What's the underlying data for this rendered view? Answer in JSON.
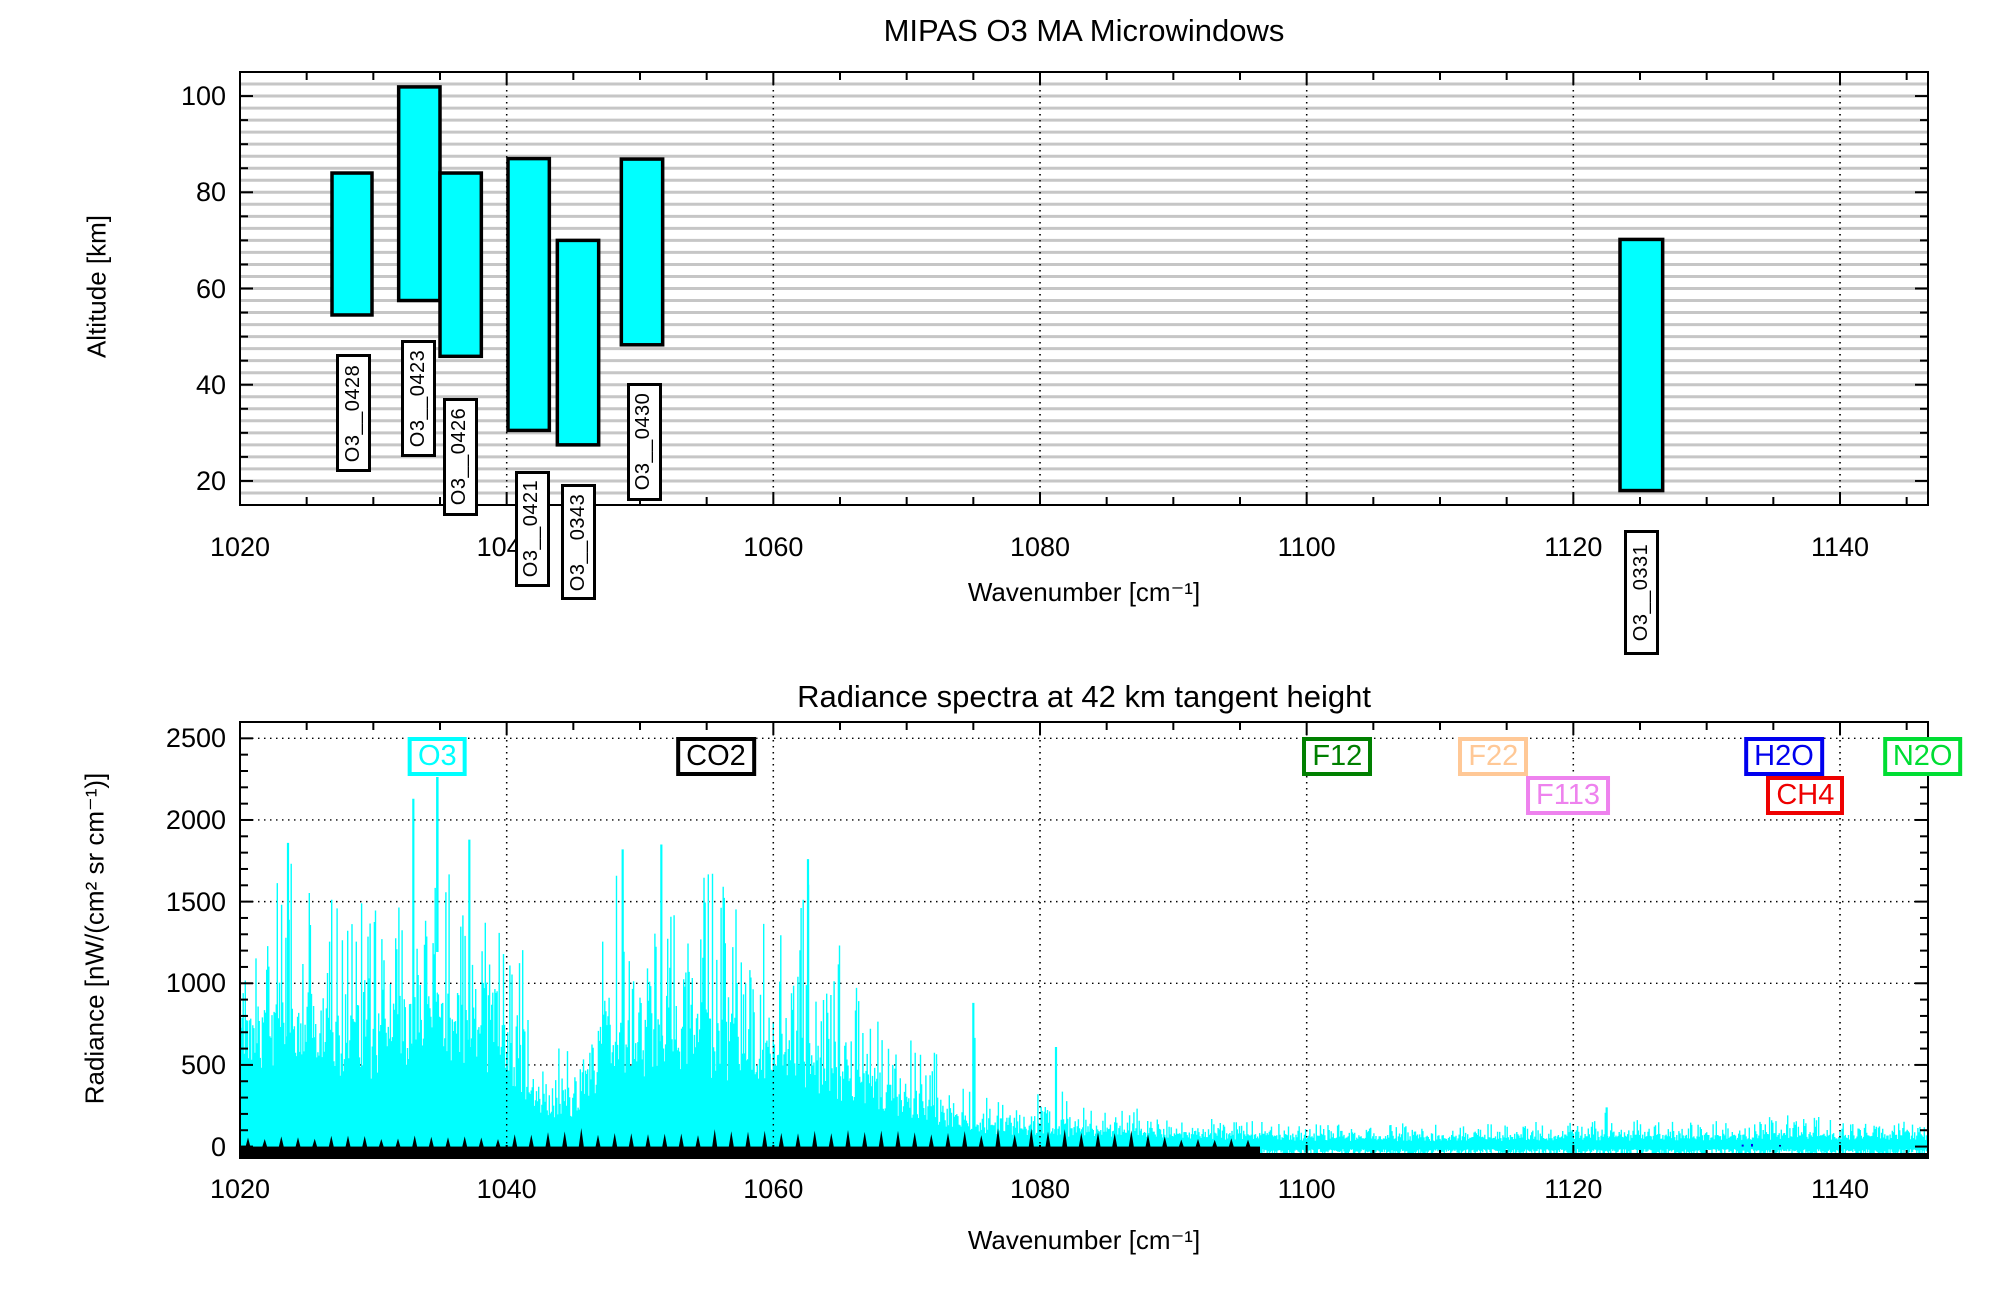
{
  "background_color": "#ffffff",
  "chart_data": [
    {
      "type": "bar",
      "title": "MIPAS O3 MA Microwindows",
      "xlabel": "Wavenumber [cm⁻¹]",
      "ylabel": "Altitude [km]",
      "x_range": [
        1020,
        1146.6
      ],
      "y_range": [
        15,
        105
      ],
      "x_ticks": [
        1020,
        1040,
        1060,
        1080,
        1100,
        1120,
        1140
      ],
      "y_ticks": [
        20,
        40,
        60,
        80,
        100
      ],
      "x_minor_step": 5,
      "y_minor_step": 5,
      "grid_h_step": 2.5,
      "grid_color": "#c6c6c6",
      "bar_color": "#00ffff",
      "bar_border_color": "#000000",
      "microwindows": [
        {
          "name": "O3__0428",
          "wn": [
            1026.9,
            1029.9
          ],
          "alt": [
            54.5,
            84.0
          ],
          "label_wn": 1028.5,
          "label_alt": [
            21.8,
            46.3
          ]
        },
        {
          "name": "O3__0423",
          "wn": [
            1031.9,
            1035.0
          ],
          "alt": [
            57.5,
            101.9
          ],
          "label_wn": 1033.4,
          "label_alt": [
            25.0,
            49.3
          ]
        },
        {
          "name": "O3__0426",
          "wn": [
            1035.0,
            1038.1
          ],
          "alt": [
            45.9,
            84.0
          ],
          "label_wn": 1036.5,
          "label_alt": [
            12.8,
            37.2
          ]
        },
        {
          "name": "O3__0421",
          "wn": [
            1040.1,
            1043.2
          ],
          "alt": [
            30.5,
            87.0
          ],
          "label_wn": 1041.9,
          "label_alt": [
            -2.0,
            22.1
          ]
        },
        {
          "name": "O3__0343",
          "wn": [
            1043.8,
            1046.9
          ],
          "alt": [
            27.5,
            70.0
          ],
          "label_wn": 1045.4,
          "label_alt": [
            -4.8,
            19.3
          ]
        },
        {
          "name": "O3__0430",
          "wn": [
            1048.6,
            1051.7
          ],
          "alt": [
            48.3,
            86.9
          ],
          "label_wn": 1050.3,
          "label_alt": [
            15.9,
            40.3
          ]
        },
        {
          "name": "O3__0331",
          "wn": [
            1123.5,
            1126.7
          ],
          "alt": [
            18.0,
            70.2
          ],
          "label_wn": 1125.1,
          "label_alt": [
            -16.2,
            9.8
          ]
        }
      ]
    },
    {
      "type": "line",
      "title": "Radiance spectra at 42 km tangent height",
      "xlabel": "Wavenumber [cm⁻¹]",
      "ylabel": "Radiance [nW/(cm² sr cm⁻¹)]",
      "x_range": [
        1020,
        1146.6
      ],
      "y_range": [
        -70,
        2600
      ],
      "x_ticks": [
        1020,
        1040,
        1060,
        1080,
        1100,
        1120,
        1140
      ],
      "y_ticks": [
        0,
        500,
        1000,
        1500,
        2000,
        2500
      ],
      "x_minor_step": 5,
      "y_minor_step": 100,
      "spectrum_color": "#00ffff",
      "molecule_labels": [
        {
          "name": "O3",
          "color": "#00ffff",
          "wn": 1034.8,
          "row": 1,
          "pointer": true
        },
        {
          "name": "CO2",
          "color": "#000000",
          "wn": 1055.7,
          "row": 1
        },
        {
          "name": "F12",
          "color": "#008000",
          "wn": 1102.3,
          "row": 1
        },
        {
          "name": "F22",
          "color": "#ffc896",
          "wn": 1114.0,
          "row": 1
        },
        {
          "name": "F113",
          "color": "#ee82ee",
          "wn": 1119.6,
          "row": 2
        },
        {
          "name": "H2O",
          "color": "#0000ee",
          "wn": 1135.8,
          "row": 1
        },
        {
          "name": "CH4",
          "color": "#ee0000",
          "wn": 1137.4,
          "row": 2
        },
        {
          "name": "N2O",
          "color": "#00dd33",
          "wn": 1146.2,
          "row": 1
        }
      ],
      "envelope": [
        [
          1020,
          1520
        ],
        [
          1021,
          1480
        ],
        [
          1022.5,
          1600
        ],
        [
          1023.5,
          1850
        ],
        [
          1025,
          1650
        ],
        [
          1026.5,
          1550
        ],
        [
          1028,
          1750
        ],
        [
          1029.5,
          1450
        ],
        [
          1031,
          1500
        ],
        [
          1032.5,
          1700
        ],
        [
          1033.2,
          1950
        ],
        [
          1034,
          1750
        ],
        [
          1035,
          1600
        ],
        [
          1036,
          1700
        ],
        [
          1037,
          1850
        ],
        [
          1038.5,
          1750
        ],
        [
          1040,
          1600
        ],
        [
          1041,
          1400
        ],
        [
          1041.8,
          800
        ],
        [
          1043,
          560
        ],
        [
          1044,
          620
        ],
        [
          1045,
          600
        ],
        [
          1045.8,
          750
        ],
        [
          1046.5,
          1200
        ],
        [
          1047.5,
          1600
        ],
        [
          1048.5,
          1800
        ],
        [
          1050,
          1700
        ],
        [
          1051.5,
          1840
        ],
        [
          1053,
          1700
        ],
        [
          1054.5,
          1780
        ],
        [
          1056,
          1650
        ],
        [
          1057.5,
          1500
        ],
        [
          1058.5,
          1250
        ],
        [
          1059.5,
          1450
        ],
        [
          1060.5,
          1300
        ],
        [
          1061.5,
          1200
        ],
        [
          1062.6,
          1760
        ],
        [
          1063.5,
          1350
        ],
        [
          1064.5,
          1250
        ],
        [
          1065.5,
          1300
        ],
        [
          1066.5,
          1150
        ],
        [
          1067.5,
          950
        ],
        [
          1068.5,
          1100
        ],
        [
          1069.5,
          800
        ],
        [
          1070.5,
          700
        ],
        [
          1071.5,
          600
        ],
        [
          1072.5,
          650
        ],
        [
          1073.5,
          450
        ],
        [
          1074.5,
          400
        ],
        [
          1075,
          880
        ],
        [
          1075.5,
          350
        ],
        [
          1076.5,
          300
        ],
        [
          1077.5,
          280
        ],
        [
          1078.5,
          300
        ],
        [
          1079.5,
          320
        ],
        [
          1080.5,
          350
        ],
        [
          1081.2,
          610
        ],
        [
          1082,
          300
        ],
        [
          1083,
          260
        ],
        [
          1084,
          240
        ],
        [
          1085,
          220
        ],
        [
          1086,
          230
        ],
        [
          1087,
          240
        ],
        [
          1088,
          230
        ],
        [
          1089,
          200
        ],
        [
          1090,
          190
        ],
        [
          1091,
          200
        ],
        [
          1092,
          180
        ],
        [
          1093,
          170
        ],
        [
          1094,
          160
        ],
        [
          1095,
          150
        ],
        [
          1096,
          160
        ],
        [
          1098,
          140
        ],
        [
          1100,
          150
        ],
        [
          1102,
          140
        ],
        [
          1104,
          150
        ],
        [
          1106,
          140
        ],
        [
          1108,
          150
        ],
        [
          1110,
          140
        ],
        [
          1112,
          130
        ],
        [
          1114,
          150
        ],
        [
          1116,
          160
        ],
        [
          1118,
          170
        ],
        [
          1120,
          190
        ],
        [
          1122,
          230
        ],
        [
          1123,
          180
        ],
        [
          1124,
          160
        ],
        [
          1126,
          170
        ],
        [
          1128,
          160
        ],
        [
          1130,
          170
        ],
        [
          1132,
          190
        ],
        [
          1134,
          180
        ],
        [
          1136,
          220
        ],
        [
          1138,
          190
        ],
        [
          1140,
          170
        ],
        [
          1142,
          180
        ],
        [
          1144,
          190
        ],
        [
          1146,
          230
        ],
        [
          1146.6,
          200
        ]
      ],
      "mass": [
        [
          1020,
          950
        ],
        [
          1022,
          900
        ],
        [
          1024,
          850
        ],
        [
          1026,
          800
        ],
        [
          1028,
          850
        ],
        [
          1030,
          800
        ],
        [
          1032,
          850
        ],
        [
          1034,
          900
        ],
        [
          1036,
          950
        ],
        [
          1038,
          900
        ],
        [
          1040,
          850
        ],
        [
          1041.5,
          500
        ],
        [
          1043,
          300
        ],
        [
          1044,
          350
        ],
        [
          1045,
          320
        ],
        [
          1046,
          500
        ],
        [
          1047,
          700
        ],
        [
          1048,
          800
        ],
        [
          1050,
          850
        ],
        [
          1052,
          900
        ],
        [
          1054,
          880
        ],
        [
          1056,
          800
        ],
        [
          1058,
          700
        ],
        [
          1060,
          650
        ],
        [
          1062,
          700
        ],
        [
          1064,
          600
        ],
        [
          1066,
          500
        ],
        [
          1068,
          420
        ],
        [
          1070,
          330
        ],
        [
          1072,
          260
        ],
        [
          1074,
          180
        ],
        [
          1076,
          140
        ],
        [
          1078,
          130
        ],
        [
          1080,
          140
        ],
        [
          1082,
          120
        ],
        [
          1084,
          110
        ],
        [
          1086,
          110
        ],
        [
          1088,
          100
        ],
        [
          1090,
          90
        ],
        [
          1092,
          90
        ],
        [
          1094,
          80
        ],
        [
          1096,
          80
        ],
        [
          1100,
          70
        ],
        [
          1105,
          65
        ],
        [
          1110,
          60
        ],
        [
          1115,
          65
        ],
        [
          1120,
          80
        ],
        [
          1125,
          70
        ],
        [
          1130,
          75
        ],
        [
          1135,
          80
        ],
        [
          1140,
          70
        ],
        [
          1144,
          80
        ],
        [
          1146.6,
          75
        ]
      ],
      "isolated_peaks": [
        [
          1023.6,
          1860
        ],
        [
          1033.0,
          2130
        ],
        [
          1037.2,
          1880
        ],
        [
          1048.7,
          1820
        ],
        [
          1051.6,
          1850
        ],
        [
          1062.6,
          1760
        ],
        [
          1075.0,
          880
        ],
        [
          1081.2,
          610
        ],
        [
          1122.5,
          240
        ]
      ],
      "co2_line_markers": {
        "color": "#000000",
        "wn_start": 1020.6,
        "wn_end": 1096.5,
        "spacing": 1.25
      },
      "minor_traces": [
        {
          "color": "#0000ee",
          "wn": 1132.7,
          "value": 12
        },
        {
          "color": "#0000ee",
          "wn": 1133.4,
          "value": 16
        },
        {
          "color": "#00008b",
          "wn": 1135.5,
          "value": 10
        }
      ]
    }
  ]
}
